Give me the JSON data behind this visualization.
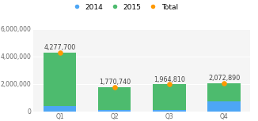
{
  "categories": [
    "Q1",
    "Q2",
    "Q3",
    "Q4"
  ],
  "values_2014": [
    400000,
    100000,
    100000,
    700000
  ],
  "values_2015": [
    3877700,
    1670740,
    1864810,
    1372890
  ],
  "totals": [
    4277700,
    1770740,
    1964810,
    2072890
  ],
  "total_labels": [
    "4,277,700",
    "1,770,740",
    "1,964,810",
    "2,072,890"
  ],
  "color_2014": "#4da6f5",
  "color_2015": "#4dbb6e",
  "color_total": "#ff9900",
  "ylim": [
    0,
    6000000
  ],
  "yticks": [
    0,
    2000000,
    4000000,
    6000000
  ],
  "ytick_labels": [
    "0",
    "2,000,000",
    "4,000,000",
    "6,000,000"
  ],
  "legend_labels": [
    "2014",
    "2015",
    "Total"
  ],
  "background_color": "#ffffff",
  "plot_bg_color": "#f5f5f5",
  "grid_color": "#ffffff",
  "label_fontsize": 5.8,
  "tick_fontsize": 5.5,
  "legend_fontsize": 6.5,
  "bar_width": 0.6
}
